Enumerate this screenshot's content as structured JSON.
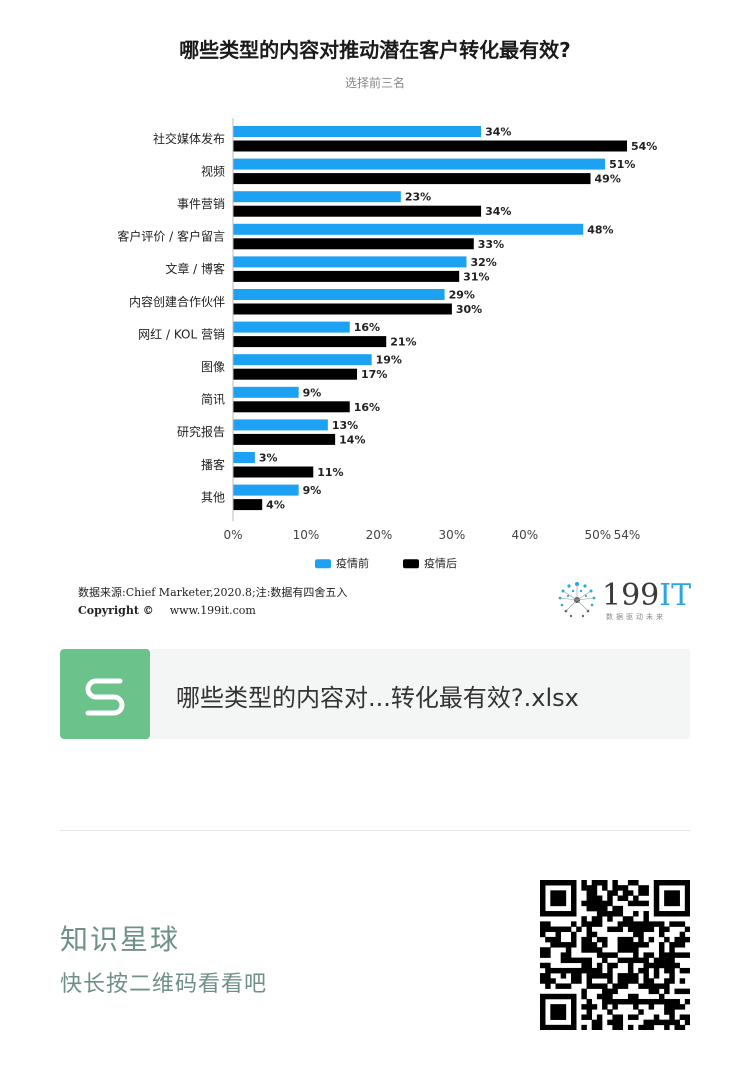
{
  "chart_data": {
    "type": "bar",
    "orientation": "horizontal",
    "title": "哪些类型的内容对推动潜在客户转化最有效?",
    "subtitle": "选择前三名",
    "categories": [
      "社交媒体发布",
      "视频",
      "事件营销",
      "客户评价 / 客户留言",
      "文章 / 博客",
      "内容创建合作伙伴",
      "网红 / KOL 营销",
      "图像",
      "简讯",
      "研究报告",
      "播客",
      "其他"
    ],
    "series": [
      {
        "name": "疫情前",
        "color": "#1da1f2",
        "values": [
          34,
          51,
          23,
          48,
          32,
          29,
          16,
          19,
          9,
          13,
          3,
          9
        ]
      },
      {
        "name": "疫情后",
        "color": "#000000",
        "values": [
          54,
          49,
          34,
          33,
          31,
          30,
          21,
          17,
          16,
          14,
          11,
          4
        ]
      }
    ],
    "value_suffix": "%",
    "xlim": [
      0,
      54
    ],
    "xticks": [
      0,
      10,
      20,
      30,
      40,
      50,
      54
    ],
    "xtick_labels": [
      "0%",
      "10%",
      "20%",
      "30%",
      "40%",
      "50%",
      "54%"
    ],
    "legend_position": "bottom",
    "grid": false
  },
  "footer": {
    "source": "数据来源:Chief Marketer,2020.8;注:数据有四舍五入",
    "copyright_label": "Copyright ©",
    "website": "www.199it.com"
  },
  "brand": {
    "name_digits": "199",
    "name_it": "IT",
    "tagline": "数据驱动未来"
  },
  "file_card": {
    "filename": "哪些类型的内容对...转化最有效?.xlsx"
  },
  "planet": {
    "title": "知识星球",
    "hint": "快长按二维码看看吧"
  },
  "colors": {
    "file_icon": "#6cc28b",
    "planet_text": "#6f9088",
    "brand_accent": "#29a7e1"
  }
}
